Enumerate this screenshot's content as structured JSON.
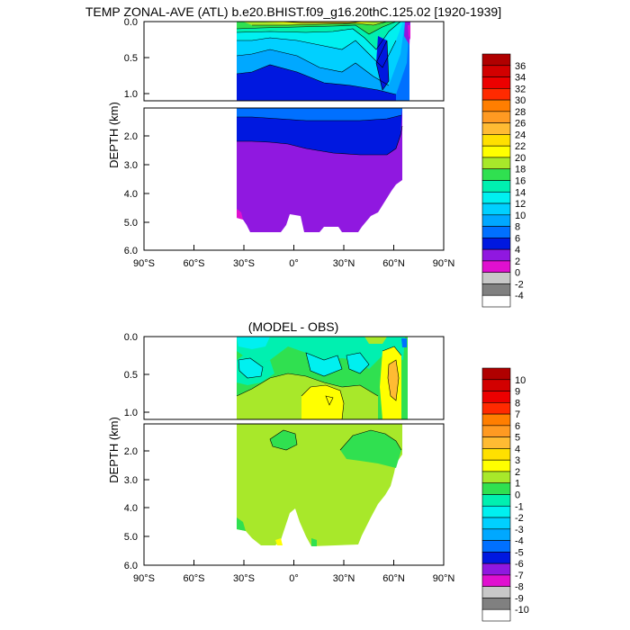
{
  "top_panel": {
    "title": "TEMP ZONAL-AVE (ATL) b.e20.BHIST.f09_g16.20thC.125.02 [1920-1939]",
    "ylabel": "DEPTH (km)",
    "y_ticks_upper": [
      "0.0",
      "0.5",
      "1.0"
    ],
    "y_ticks_lower": [
      "2.0",
      "3.0",
      "4.0",
      "5.0",
      "6.0"
    ],
    "x_ticks": [
      "90°S",
      "60°S",
      "30°S",
      "0°",
      "30°N",
      "60°N",
      "90°N"
    ]
  },
  "bottom_panel": {
    "title": "(MODEL - OBS)",
    "ylabel": "DEPTH (km)",
    "y_ticks_upper": [
      "0.0",
      "0.5",
      "1.0"
    ],
    "y_ticks_lower": [
      "2.0",
      "3.0",
      "4.0",
      "5.0",
      "6.0"
    ],
    "x_ticks": [
      "90°S",
      "60°S",
      "30°S",
      "0°",
      "30°N",
      "60°N",
      "90°N"
    ]
  },
  "chart_data": [
    {
      "type": "heatmap",
      "title": "TEMP ZONAL-AVE (ATL) b.e20.BHIST.f09_g16.20thC.125.02 [1920-1939]",
      "ylabel": "DEPTH (km)",
      "xlim": [
        -90,
        90
      ],
      "ylim": [
        0,
        6
      ],
      "colorbar_levels": [
        "36",
        "34",
        "32",
        "30",
        "28",
        "26",
        "24",
        "22",
        "20",
        "18",
        "16",
        "14",
        "12",
        "10",
        "8",
        "6",
        "4",
        "2",
        "0",
        "-2",
        "-4"
      ],
      "colorbar_colors": [
        "#b00000",
        "#d20000",
        "#ec0000",
        "#ff2a00",
        "#ff7e00",
        "#ff9a22",
        "#ffbb33",
        "#ffe000",
        "#ffff00",
        "#a8e82a",
        "#30e050",
        "#00f0b0",
        "#00f0f0",
        "#00d0ff",
        "#00a8ff",
        "#0070ff",
        "#0018e0",
        "#9018e0",
        "#e010d0",
        "#c8c8c8",
        "#808080",
        "#ffffff"
      ]
    },
    {
      "type": "heatmap",
      "title": "(MODEL - OBS)",
      "ylabel": "DEPTH (km)",
      "xlim": [
        -90,
        90
      ],
      "ylim": [
        0,
        6
      ],
      "colorbar_levels": [
        "10",
        "9",
        "8",
        "7",
        "6",
        "5",
        "4",
        "3",
        "2",
        "1",
        "0",
        "-1",
        "-2",
        "-3",
        "-4",
        "-5",
        "-6",
        "-7",
        "-8",
        "-9",
        "-10"
      ],
      "colorbar_colors": [
        "#b00000",
        "#d20000",
        "#ec0000",
        "#ff2a00",
        "#ff7e00",
        "#ff9a22",
        "#ffbb33",
        "#ffe000",
        "#ffff00",
        "#a8e82a",
        "#30e050",
        "#00f0b0",
        "#00f0f0",
        "#00d0ff",
        "#00a8ff",
        "#0070ff",
        "#0018e0",
        "#9018e0",
        "#e010d0",
        "#c8c8c8",
        "#808080",
        "#ffffff"
      ]
    }
  ]
}
